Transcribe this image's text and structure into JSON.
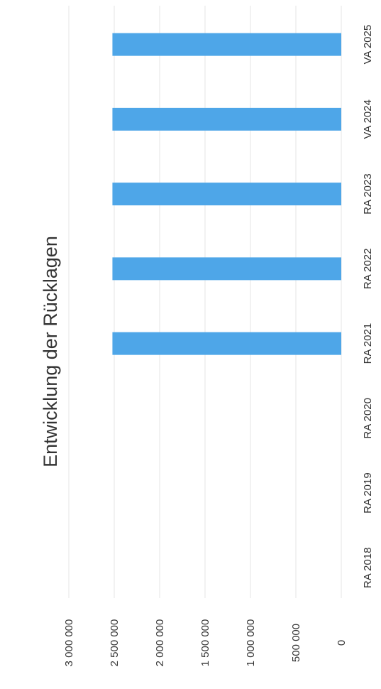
{
  "chart_data": {
    "type": "bar",
    "title": "Entwicklung der Rücklagen",
    "categories": [
      "RA 2018",
      "RA 2019",
      "RA 2020",
      "RA 2021",
      "RA 2022",
      "RA 2023",
      "VA 2024",
      "VA 2025"
    ],
    "values": [
      null,
      null,
      null,
      2520000,
      2520000,
      2520000,
      2520000,
      2520000
    ],
    "y_ticks": [
      "0",
      "500 000",
      "1 000 000",
      "1 500 000",
      "2 000 000",
      "2 500 000",
      "3 000 000"
    ],
    "ylim": [
      0,
      3000000
    ],
    "grid": true,
    "legend": "none",
    "orientation": "rotated 90° clockwise (page scanned sideways)",
    "bar_color": "#4ea6e8"
  }
}
